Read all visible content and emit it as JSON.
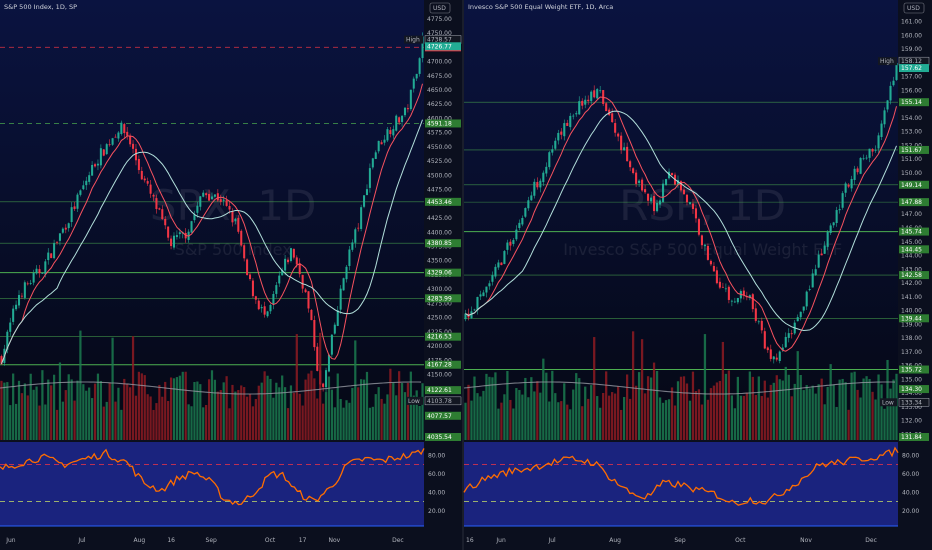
{
  "theme": {
    "bg_top": "#0a1340",
    "bg_bottom": "#050814",
    "rsi_bg": "#1a237e",
    "up": "#22ab94",
    "down": "#f23645",
    "vol_up": "#1b7a4f",
    "vol_down": "#8e1b22",
    "ma_fast": "#f7525f",
    "ma_slow": "#b2dfdb",
    "level_green": "#4caf50",
    "level_red": "#f23645",
    "rsi_line": "#ff6d00",
    "rsi_ob": "#f23645",
    "rsi_os": "#c8e06a",
    "usd_label": "USD",
    "high_label": "High",
    "low_label": "Low"
  },
  "chart_data": [
    {
      "type": "candlestick",
      "title": "S&P 500 Index, 1D, SP",
      "watermark_symbol": "SPX, 1D",
      "watermark_name": "S&P 500 Index",
      "ylim": [
        4035,
        4780
      ],
      "y_ticks": [
        4075,
        4100,
        4125,
        4150,
        4175,
        4200,
        4225,
        4250,
        4275,
        4300,
        4325,
        4350,
        4375,
        4400,
        4425,
        4450,
        4475,
        4500,
        4525,
        4550,
        4575,
        4600,
        4625,
        4650,
        4675,
        4700,
        4725,
        4750,
        4775
      ],
      "x_tick_labels": [
        "Jun",
        "Jul",
        "Aug",
        "16",
        "Sep",
        "Oct",
        "17",
        "Nov",
        "Dec"
      ],
      "x_tick_pos": [
        0.01,
        0.18,
        0.31,
        0.39,
        0.48,
        0.62,
        0.7,
        0.77,
        0.92
      ],
      "path": [
        [
          0,
          4180
        ],
        [
          0.04,
          4290
        ],
        [
          0.1,
          4340
        ],
        [
          0.16,
          4425
        ],
        [
          0.22,
          4520
        ],
        [
          0.28,
          4585
        ],
        [
          0.3,
          4570
        ],
        [
          0.33,
          4505
        ],
        [
          0.37,
          4440
        ],
        [
          0.4,
          4380
        ],
        [
          0.44,
          4400
        ],
        [
          0.48,
          4470
        ],
        [
          0.52,
          4460
        ],
        [
          0.56,
          4410
        ],
        [
          0.58,
          4330
        ],
        [
          0.6,
          4290
        ],
        [
          0.63,
          4245
        ],
        [
          0.66,
          4320
        ],
        [
          0.69,
          4370
        ],
        [
          0.72,
          4300
        ],
        [
          0.74,
          4220
        ],
        [
          0.76,
          4110
        ],
        [
          0.79,
          4230
        ],
        [
          0.82,
          4350
        ],
        [
          0.85,
          4420
        ],
        [
          0.88,
          4530
        ],
        [
          0.9,
          4560
        ],
        [
          0.93,
          4590
        ],
        [
          0.96,
          4610
        ],
        [
          0.975,
          4650
        ],
        [
          1,
          4738
        ]
      ],
      "high": 4738.57,
      "last": 4726.77,
      "open_tag": 4724.98,
      "low": 4103.78,
      "bottom_tag": 4035.54,
      "levels": [
        {
          "value": 4724.98,
          "style": "dash-red",
          "label": "4724.98"
        },
        {
          "value": 4591.18,
          "style": "dash-green",
          "label": "4591.18"
        },
        {
          "value": 4453.46,
          "style": "solid-green",
          "label": "4453.46"
        },
        {
          "value": 4380.85,
          "style": "solid-green",
          "label": "4380.85"
        },
        {
          "value": 4329.06,
          "style": "solid-green-bright",
          "label": "4329.06"
        },
        {
          "value": 4283.99,
          "style": "solid-green",
          "label": "4283.99"
        },
        {
          "value": 4216.53,
          "style": "solid-green",
          "label": "4216.53"
        },
        {
          "value": 4167.28,
          "style": "solid-green-bright",
          "label": "4167.28"
        },
        {
          "value": 4122.61,
          "style": "none",
          "label": "4122.61"
        },
        {
          "value": 4077.57,
          "style": "none",
          "label": "4077.57"
        }
      ],
      "rsi_ticks": [
        80,
        60,
        40,
        20
      ],
      "rsi_tick_labels": [
        "80.00",
        "60.00",
        "40.00",
        "20.00"
      ],
      "rsi_path": [
        [
          0,
          65
        ],
        [
          0.05,
          72
        ],
        [
          0.1,
          78
        ],
        [
          0.15,
          70
        ],
        [
          0.2,
          76
        ],
        [
          0.25,
          82
        ],
        [
          0.3,
          72
        ],
        [
          0.34,
          50
        ],
        [
          0.38,
          42
        ],
        [
          0.42,
          55
        ],
        [
          0.46,
          62
        ],
        [
          0.5,
          50
        ],
        [
          0.53,
          32
        ],
        [
          0.57,
          28
        ],
        [
          0.6,
          40
        ],
        [
          0.64,
          60
        ],
        [
          0.67,
          58
        ],
        [
          0.7,
          40
        ],
        [
          0.74,
          30
        ],
        [
          0.78,
          45
        ],
        [
          0.82,
          70
        ],
        [
          0.86,
          76
        ],
        [
          0.9,
          74
        ],
        [
          0.94,
          78
        ],
        [
          0.97,
          80
        ],
        [
          1,
          86
        ]
      ]
    },
    {
      "type": "candlestick",
      "title": "Invesco S&P 500 Equal Weight ETF, 1D, Arca",
      "watermark_symbol": "RSP, 1D",
      "watermark_name": "Invesco S&P 500 Equal Weight ETF",
      "ylim": [
        130.6,
        161.4
      ],
      "y_ticks": [
        131,
        132,
        133,
        134,
        135,
        136,
        137,
        138,
        139,
        140,
        141,
        142,
        143,
        144,
        145,
        146,
        147,
        148,
        149,
        150,
        151,
        152,
        153,
        154,
        155,
        156,
        157,
        158,
        159,
        160,
        161
      ],
      "x_tick_labels": [
        "16",
        "Jun",
        "Jul",
        "Aug",
        "Sep",
        "Oct",
        "Nov",
        "Dec"
      ],
      "x_tick_pos": [
        0.0,
        0.07,
        0.19,
        0.33,
        0.48,
        0.62,
        0.77,
        0.92
      ],
      "path": [
        [
          0,
          139.5
        ],
        [
          0.04,
          141
        ],
        [
          0.08,
          143.5
        ],
        [
          0.12,
          146
        ],
        [
          0.16,
          149
        ],
        [
          0.2,
          151.5
        ],
        [
          0.24,
          154
        ],
        [
          0.28,
          155.5
        ],
        [
          0.31,
          155.8
        ],
        [
          0.34,
          153.5
        ],
        [
          0.37,
          151.5
        ],
        [
          0.41,
          148.5
        ],
        [
          0.44,
          147.5
        ],
        [
          0.47,
          150
        ],
        [
          0.5,
          149
        ],
        [
          0.53,
          147
        ],
        [
          0.56,
          144
        ],
        [
          0.59,
          142
        ],
        [
          0.62,
          140.5
        ],
        [
          0.65,
          141.5
        ],
        [
          0.68,
          139
        ],
        [
          0.71,
          136
        ],
        [
          0.74,
          137.5
        ],
        [
          0.77,
          139.5
        ],
        [
          0.8,
          142
        ],
        [
          0.83,
          144.5
        ],
        [
          0.86,
          147
        ],
        [
          0.89,
          149.5
        ],
        [
          0.92,
          151
        ],
        [
          0.95,
          151.8
        ],
        [
          0.97,
          154
        ],
        [
          1,
          157.6
        ]
      ],
      "high": 158.12,
      "last": 157.62,
      "low": 133.34,
      "bottom_tag": 131.84,
      "levels": [
        {
          "value": 155.14,
          "style": "solid-green",
          "label": "155.14"
        },
        {
          "value": 151.67,
          "style": "solid-green",
          "label": "151.67"
        },
        {
          "value": 149.14,
          "style": "solid-green",
          "label": "149.14"
        },
        {
          "value": 147.88,
          "style": "solid-green",
          "label": "147.88"
        },
        {
          "value": 145.74,
          "style": "solid-green-bright",
          "label": "145.74"
        },
        {
          "value": 144.45,
          "style": "none",
          "label": "144.45"
        },
        {
          "value": 142.58,
          "style": "solid-green",
          "label": "142.58"
        },
        {
          "value": 139.44,
          "style": "solid-green",
          "label": "139.44"
        },
        {
          "value": 135.72,
          "style": "solid-green-bright",
          "label": "135.72"
        },
        {
          "value": 134.3,
          "style": "none",
          "label": "134.30"
        }
      ],
      "rsi_ticks": [
        80,
        60,
        40,
        20
      ],
      "rsi_tick_labels": [
        "80.00",
        "60.00",
        "40.00",
        "20.00"
      ],
      "rsi_path": [
        [
          0,
          42
        ],
        [
          0.05,
          55
        ],
        [
          0.1,
          62
        ],
        [
          0.15,
          66
        ],
        [
          0.2,
          72
        ],
        [
          0.25,
          76
        ],
        [
          0.3,
          72
        ],
        [
          0.34,
          55
        ],
        [
          0.38,
          40
        ],
        [
          0.42,
          34
        ],
        [
          0.46,
          50
        ],
        [
          0.5,
          48
        ],
        [
          0.54,
          42
        ],
        [
          0.58,
          38
        ],
        [
          0.62,
          28
        ],
        [
          0.66,
          32
        ],
        [
          0.7,
          30
        ],
        [
          0.74,
          42
        ],
        [
          0.78,
          55
        ],
        [
          0.82,
          70
        ],
        [
          0.86,
          72
        ],
        [
          0.9,
          75
        ],
        [
          0.94,
          78
        ],
        [
          0.97,
          80
        ],
        [
          1,
          86
        ]
      ]
    }
  ]
}
